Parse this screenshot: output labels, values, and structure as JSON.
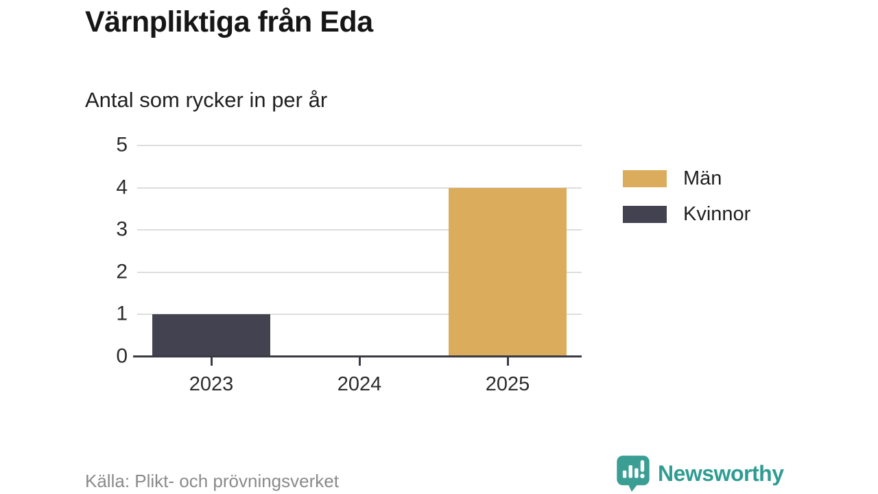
{
  "header": {
    "title": "Värnpliktiga från Eda",
    "subtitle": "Antal som rycker in per år"
  },
  "chart_data": {
    "type": "bar",
    "categories": [
      "2023",
      "2024",
      "2025"
    ],
    "series": [
      {
        "name": "Män",
        "color": "#dbac5c",
        "values": [
          0,
          0,
          4
        ]
      },
      {
        "name": "Kvinnor",
        "color": "#434250",
        "values": [
          1,
          0,
          0
        ]
      }
    ],
    "title": "Värnpliktiga från Eda",
    "subtitle": "Antal som rycker in per år",
    "xlabel": "",
    "ylabel": "",
    "ylim": [
      0,
      5
    ],
    "yticks": [
      0,
      1,
      2,
      3,
      4,
      5
    ],
    "grid": true,
    "legend_position": "right"
  },
  "colors": {
    "men": "#dbac5c",
    "women": "#434250",
    "gridline": "#dddddd",
    "axis": "#3a3a44",
    "tick_text": "#2b2b2b",
    "source_text": "#8a8a8a",
    "brand_teal": "#2f9c92"
  },
  "footer": {
    "source": "Källa: Plikt- och prövningsverket",
    "brand_name": "Newsworthy",
    "brand_icon": "newsworthy-speech-bubble-chart-icon"
  }
}
